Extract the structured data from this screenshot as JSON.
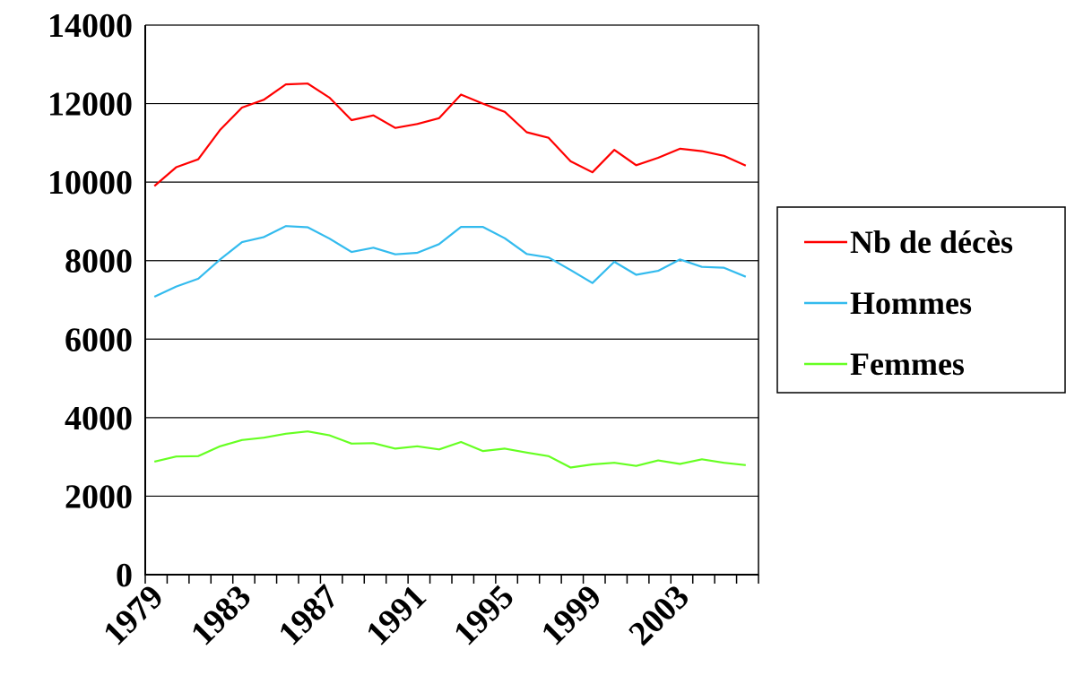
{
  "chart_data": {
    "type": "line",
    "title": "",
    "xlabel": "",
    "ylabel": "",
    "ylim": [
      0,
      14000
    ],
    "yticks": [
      0,
      2000,
      4000,
      6000,
      8000,
      10000,
      12000,
      14000
    ],
    "ytick_labels": [
      "0",
      "2000",
      "4000",
      "6000",
      "8000",
      "10000",
      "12000",
      "14000"
    ],
    "xlim": [
      1979,
      2007
    ],
    "xtick_labels": [
      "1979",
      "1983",
      "1987",
      "1991",
      "1995",
      "1999",
      "2003"
    ],
    "x": [
      1979,
      1980,
      1981,
      1982,
      1983,
      1984,
      1985,
      1986,
      1987,
      1988,
      1989,
      1990,
      1991,
      1992,
      1993,
      1994,
      1995,
      1996,
      1997,
      1998,
      1999,
      2000,
      2001,
      2002,
      2003,
      2004,
      2005,
      2006
    ],
    "grid": "horizontal",
    "legend_position": "right",
    "series": [
      {
        "name": "Nb de décès",
        "color": "#ff0000",
        "values": [
          9900,
          10380,
          10580,
          11330,
          11900,
          12100,
          12490,
          12510,
          12150,
          11580,
          11700,
          11380,
          11480,
          11630,
          12230,
          12000,
          11790,
          11270,
          11130,
          10530,
          10250,
          10820,
          10430,
          10620,
          10850,
          10790,
          10670,
          10420
        ]
      },
      {
        "name": "Hommes",
        "color": "#33bbee",
        "values": [
          7080,
          7340,
          7540,
          8030,
          8470,
          8600,
          8880,
          8850,
          8560,
          8220,
          8330,
          8160,
          8200,
          8420,
          8860,
          8860,
          8570,
          8170,
          8080,
          7760,
          7430,
          7970,
          7640,
          7740,
          8030,
          7840,
          7820,
          7590
        ]
      },
      {
        "name": "Femmes",
        "color": "#66ff22",
        "values": [
          2880,
          3010,
          3020,
          3270,
          3430,
          3490,
          3590,
          3650,
          3550,
          3340,
          3350,
          3210,
          3270,
          3190,
          3380,
          3150,
          3210,
          3110,
          3020,
          2730,
          2810,
          2850,
          2770,
          2910,
          2820,
          2940,
          2850,
          2790
        ]
      }
    ]
  }
}
